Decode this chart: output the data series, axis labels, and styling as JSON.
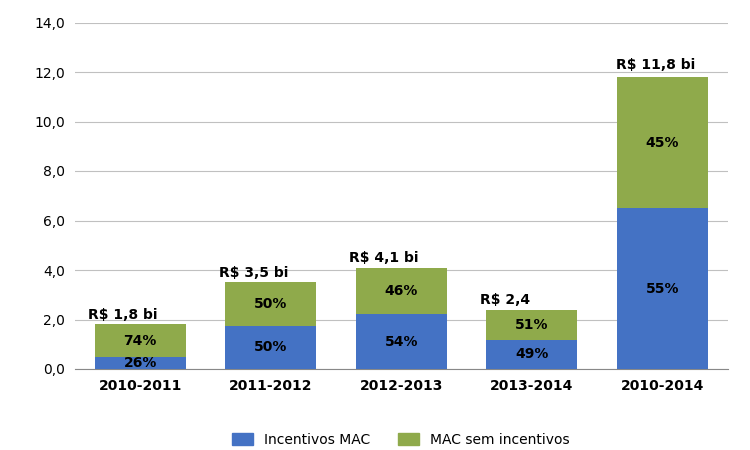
{
  "categories": [
    "2010-2011",
    "2011-2012",
    "2012-2013",
    "2013-2014",
    "2010-2014"
  ],
  "incentivos_mac": [
    0.468,
    1.75,
    2.214,
    1.176,
    6.49
  ],
  "mac_sem_incentivos": [
    1.332,
    1.75,
    1.886,
    1.224,
    5.31
  ],
  "totals_label": [
    "R$ 1,8 bi",
    "R$ 3,5 bi",
    "R$ 4,1 bi",
    "R$ 2,4",
    "R$ 11,8 bi"
  ],
  "pct_incentivos": [
    "26%",
    "50%",
    "54%",
    "49%",
    "55%"
  ],
  "pct_sem_incentivos": [
    "74%",
    "50%",
    "46%",
    "51%",
    "45%"
  ],
  "color_incentivos": "#4472C4",
  "color_sem_incentivos": "#8faa4b",
  "bar_width": 0.7,
  "ylim": [
    0,
    14
  ],
  "yticks": [
    0.0,
    2.0,
    4.0,
    6.0,
    8.0,
    10.0,
    12.0,
    14.0
  ],
  "ytick_labels": [
    "0,0",
    "2,0",
    "4,0",
    "6,0",
    "8,0",
    "10,0",
    "12,0",
    "14,0"
  ],
  "legend_incentivos": "Incentivos MAC",
  "legend_sem_incentivos": "MAC sem incentivos",
  "background_color": "#ffffff",
  "grid_color": "#c0c0c0"
}
